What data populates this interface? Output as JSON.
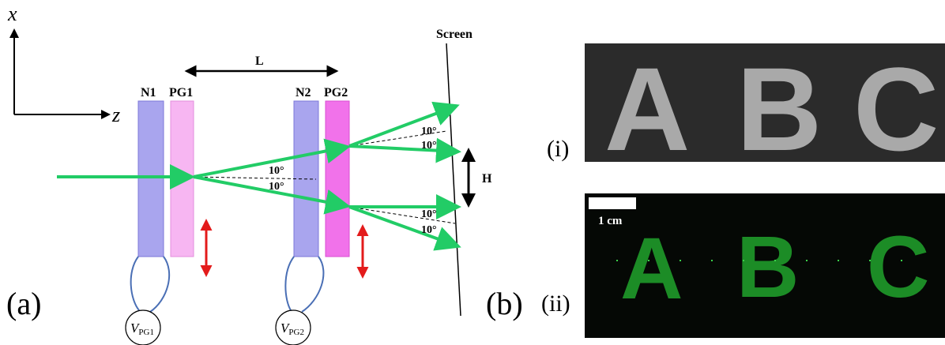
{
  "panel_a": {
    "label": "(a)",
    "axes": {
      "x": "x",
      "z": "z"
    },
    "distance_label": "L",
    "height_label": "H",
    "screen_label": "Screen",
    "elements": [
      {
        "label": "N1"
      },
      {
        "label": "PG1"
      },
      {
        "label": "N2"
      },
      {
        "label": "PG2"
      }
    ],
    "voltages": [
      {
        "symbol": "V",
        "subscript": "PG1"
      },
      {
        "symbol": "V",
        "subscript": "PG2"
      }
    ],
    "angles": [
      "10°",
      "10°",
      "10°",
      "10°",
      "10°",
      "10°"
    ]
  },
  "panel_b": {
    "label": "(b)",
    "images": [
      {
        "label": "(i)",
        "letters": [
          "A",
          "B",
          "C"
        ]
      },
      {
        "label": "(ii)",
        "letters": [
          "A",
          "B",
          "C"
        ],
        "scale_bar": "1 cm"
      }
    ]
  }
}
